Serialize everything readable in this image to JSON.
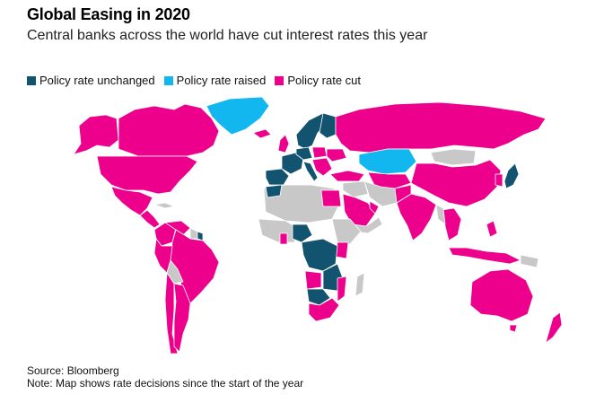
{
  "header": {
    "title": "Global Easing in 2020",
    "subtitle": "Central banks across the world have cut interest rates this year"
  },
  "legend": [
    {
      "label": "Policy rate unchanged",
      "color": "#12536f"
    },
    {
      "label": "Policy rate raised",
      "color": "#13b7f0"
    },
    {
      "label": "Policy rate cut",
      "color": "#ec008c"
    }
  ],
  "colors": {
    "unchanged": "#12536f",
    "raised": "#13b7f0",
    "cut": "#ec008c",
    "no_data": "#c8c8c8"
  },
  "footer": {
    "source": "Source: Bloomberg",
    "note": "Note: Map shows rate decisions since the start of the year"
  }
}
